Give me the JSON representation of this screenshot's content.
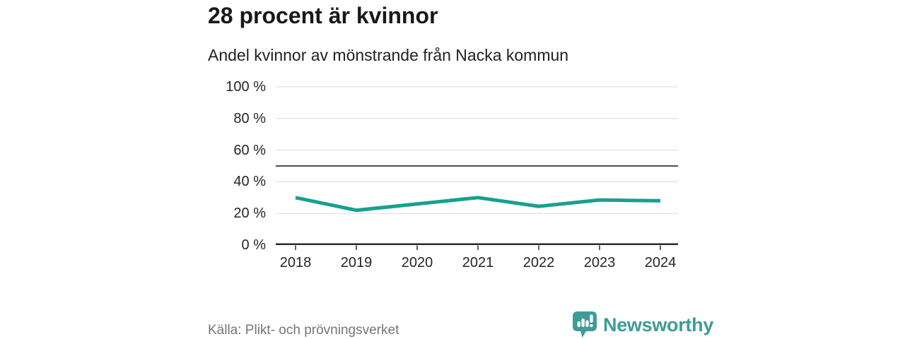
{
  "header": {
    "title": "28 procent är kvinnor",
    "subtitle": "Andel kvinnor av mönstrande från Nacka kommun"
  },
  "chart_data": {
    "type": "line",
    "title": "28 procent är kvinnor",
    "subtitle": "Andel kvinnor av mönstrande från Nacka kommun",
    "x": [
      "2018",
      "2019",
      "2020",
      "2021",
      "2022",
      "2023",
      "2024"
    ],
    "series": [
      {
        "name": "Andel kvinnor av mönstrande",
        "values": [
          30,
          22,
          26,
          30,
          24.5,
          28.5,
          28
        ]
      }
    ],
    "ylim": [
      0,
      100
    ],
    "yticks": [
      0,
      20,
      40,
      60,
      80,
      100
    ],
    "ytick_suffix": " %",
    "reference_line": 50,
    "grid": true,
    "legend": "none",
    "colors": {
      "line": "#17a08f",
      "grid": "#dcdcdc",
      "axis": "#2b2b2b",
      "reference": "#4f4f4f",
      "tick_label": "#262626"
    }
  },
  "footer": {
    "source": "Källa: Plikt- och prövningsverket",
    "brand": "Newsworthy",
    "brand_color": "#3d9d96"
  }
}
